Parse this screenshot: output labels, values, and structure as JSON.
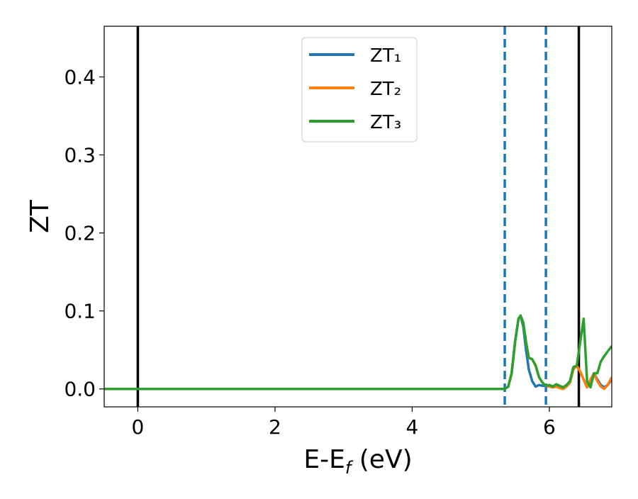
{
  "chart_data": {
    "type": "line",
    "x_label_parts": [
      "E-E",
      "f",
      " (eV)"
    ],
    "y_label": "ZT",
    "x": [
      -0.49,
      5.35,
      5.4,
      5.45,
      5.5,
      5.55,
      5.58,
      5.62,
      5.66,
      5.7,
      5.75,
      5.8,
      5.85,
      5.9,
      5.95,
      6.0,
      6.05,
      6.1,
      6.15,
      6.2,
      6.25,
      6.3,
      6.35,
      6.4,
      6.45,
      6.5,
      6.55,
      6.6,
      6.65,
      6.7,
      6.75,
      6.8,
      6.85,
      6.91
    ],
    "series": [
      {
        "name": "ZT₁",
        "color": "#1f77b4",
        "values": [
          0,
          0,
          0.003,
          0.02,
          0.06,
          0.09,
          0.094,
          0.08,
          0.05,
          0.025,
          0.01,
          0.003,
          0.005,
          0.004,
          0.004,
          0.005,
          0.003,
          0.005,
          0.004,
          0.002,
          0.004,
          0.008,
          0.025,
          0.03,
          0.022,
          0.012,
          0.002,
          0.01,
          0.02,
          0.012,
          0.005,
          0.002,
          0.005,
          0.012
        ]
      },
      {
        "name": "ZT₂",
        "color": "#ff7f0e",
        "values": [
          0,
          0,
          0.003,
          0.02,
          0.06,
          0.09,
          0.094,
          0.085,
          0.06,
          0.04,
          0.038,
          0.03,
          0.015,
          0.008,
          0.004,
          0.003,
          0.002,
          0.003,
          0.001,
          0,
          0.003,
          0.008,
          0.025,
          0.03,
          0.022,
          0.012,
          0.002,
          0.012,
          0.02,
          0.01,
          0.003,
          0,
          0.005,
          0.015
        ]
      },
      {
        "name": "ZT₃",
        "color": "#2ca02c",
        "values": [
          0,
          0,
          0.003,
          0.02,
          0.06,
          0.09,
          0.094,
          0.085,
          0.06,
          0.04,
          0.038,
          0.03,
          0.015,
          0.008,
          0.004,
          0.005,
          0.003,
          0.006,
          0.004,
          0.002,
          0.005,
          0.01,
          0.028,
          0.03,
          0.06,
          0.09,
          0.01,
          0.002,
          0.02,
          0.02,
          0.035,
          0.042,
          0.048,
          0.055
        ]
      }
    ],
    "vlines": [
      {
        "x": 0,
        "color": "#000000",
        "style": "solid"
      },
      {
        "x": 6.43,
        "color": "#000000",
        "style": "solid"
      },
      {
        "x": 5.35,
        "color": "#1f77b4",
        "style": "dashed"
      },
      {
        "x": 5.95,
        "color": "#1f77b4",
        "style": "dashed"
      }
    ],
    "xlim": [
      -0.49,
      6.91
    ],
    "xticks": [
      0,
      2,
      4,
      6
    ],
    "ylim": [
      -0.023,
      0.465
    ],
    "yticks": [
      {
        "value": 0,
        "label": "0.0"
      },
      0.1,
      0.2,
      0.3,
      0.4
    ],
    "legend": "upper center",
    "grid": false
  }
}
